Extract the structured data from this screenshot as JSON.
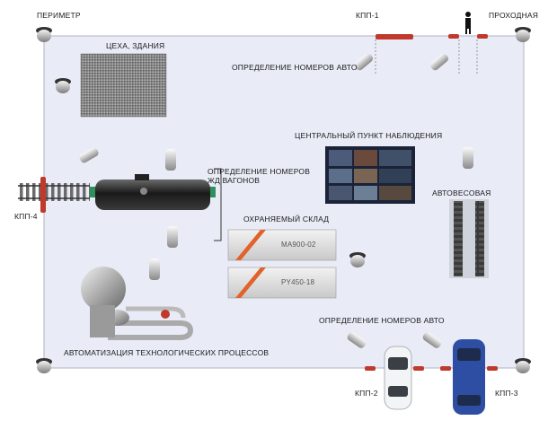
{
  "labels": {
    "perimeter": "ПЕРИМЕТР",
    "kpp1": "КПП-1",
    "checkpoint": "ПРОХОДНАЯ",
    "buildings": "ЦЕХА, ЗДАНИЯ",
    "auto_numbers_top": "ОПРЕДЕЛЕНИЕ НОМЕРОВ АВТО",
    "central_post": "ЦЕНТРАЛЬНЫЙ ПУНКТ НАБЛЮДЕНИЯ",
    "rail_numbers": "ОПРЕДЕЛЕНИЕ НОМЕРОВ\nЖД ВАГОНОВ",
    "kpp4": "КПП-4",
    "scale": "АВТОВЕСОВАЯ",
    "warehouse": "ОХРАНЯЕМЫЙ СКЛАД",
    "auto_numbers_bottom": "ОПРЕДЕЛЕНИЕ НОМЕРОВ АВТО",
    "process_automation": "АВТОМАТИЗАЦИЯ ТЕХНОЛОГИЧЕСКИХ ПРОЦЕССОВ",
    "kpp2": "КПП-2",
    "kpp3": "КПП-3"
  },
  "containers": {
    "top_code": "MA900-02",
    "bottom_code": "PY450-18"
  },
  "colors": {
    "zone_fill": "#e9ecf7",
    "zone_border": "#b9bfcc",
    "barrier": "#c0392b",
    "car_white": "#f2f4f6",
    "car_blue": "#2d4ea3"
  }
}
